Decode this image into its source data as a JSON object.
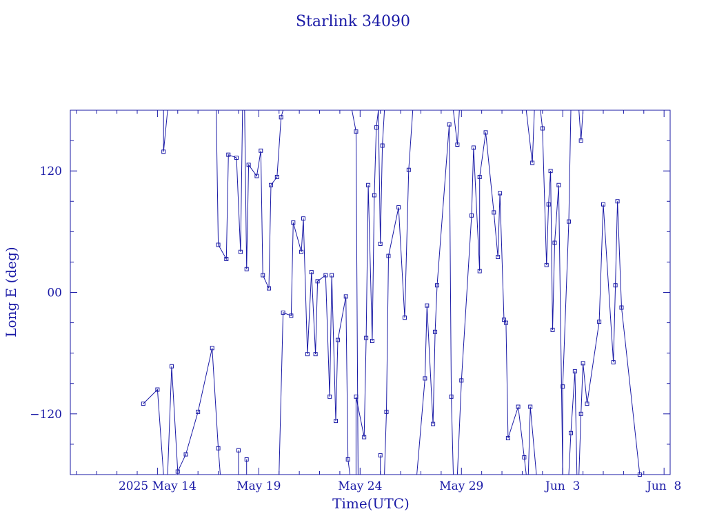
{
  "colors": {
    "ink": "#1a1aa6"
  },
  "chart_data": {
    "type": "line",
    "title": "Starlink 34090",
    "xlabel": "Time(UTC)",
    "ylabel": "Long E (deg)",
    "xlim_days": [
      9.7,
      39.3
    ],
    "ylim": [
      -180,
      180
    ],
    "x_ticks": [
      {
        "day": 14,
        "label": "2025 May 14"
      },
      {
        "day": 19,
        "label": "May 19"
      },
      {
        "day": 24,
        "label": "May 24"
      },
      {
        "day": 29,
        "label": "May 29"
      },
      {
        "day": 34,
        "label": "Jun  3"
      },
      {
        "day": 39,
        "label": "Jun  8"
      }
    ],
    "y_ticks": [
      {
        "value": 120,
        "label": "120"
      },
      {
        "value": 0,
        "label": "00"
      },
      {
        "value": -120,
        "label": "−120"
      }
    ],
    "marker": "square",
    "points": [
      [
        13.3,
        -110
      ],
      [
        14.0,
        -96
      ],
      [
        14.7,
        -73
      ],
      [
        15.0,
        -177
      ],
      [
        15.4,
        -160
      ],
      [
        16.0,
        -118
      ],
      [
        16.7,
        -55
      ],
      [
        17.0,
        -154
      ],
      [
        14.3,
        139
      ],
      [
        17.0,
        47
      ],
      [
        17.4,
        33
      ],
      [
        17.5,
        136
      ],
      [
        17.9,
        133
      ],
      [
        18.1,
        40
      ],
      [
        18.4,
        23
      ],
      [
        18.5,
        126
      ],
      [
        18.9,
        115
      ],
      [
        19.1,
        140
      ],
      [
        19.2,
        17
      ],
      [
        19.5,
        4
      ],
      [
        19.6,
        106
      ],
      [
        19.9,
        114
      ],
      [
        20.1,
        173
      ],
      [
        18.0,
        -156
      ],
      [
        18.4,
        -165
      ],
      [
        20.2,
        -20
      ],
      [
        20.6,
        -23
      ],
      [
        20.7,
        69
      ],
      [
        21.1,
        40
      ],
      [
        21.2,
        73
      ],
      [
        21.4,
        -61
      ],
      [
        21.6,
        20
      ],
      [
        21.8,
        -61
      ],
      [
        21.9,
        11
      ],
      [
        22.3,
        17
      ],
      [
        22.5,
        -103
      ],
      [
        22.6,
        17
      ],
      [
        22.8,
        -127
      ],
      [
        22.9,
        -47
      ],
      [
        23.3,
        -4
      ],
      [
        23.4,
        -165
      ],
      [
        23.8,
        159
      ],
      [
        23.8,
        -103
      ],
      [
        24.2,
        -143
      ],
      [
        24.3,
        -45
      ],
      [
        24.4,
        106
      ],
      [
        24.6,
        -48
      ],
      [
        24.7,
        96
      ],
      [
        24.8,
        163
      ],
      [
        25.0,
        -161
      ],
      [
        25.0,
        48
      ],
      [
        25.1,
        145
      ],
      [
        25.3,
        -118
      ],
      [
        25.4,
        36
      ],
      [
        25.9,
        84
      ],
      [
        26.2,
        -25
      ],
      [
        26.4,
        121
      ],
      [
        27.2,
        -85
      ],
      [
        27.3,
        -13
      ],
      [
        27.6,
        -130
      ],
      [
        27.7,
        -39
      ],
      [
        27.8,
        7
      ],
      [
        28.4,
        166
      ],
      [
        28.5,
        -103
      ],
      [
        28.8,
        146
      ],
      [
        29.0,
        -87
      ],
      [
        29.5,
        76
      ],
      [
        29.6,
        143
      ],
      [
        29.9,
        21
      ],
      [
        29.9,
        114
      ],
      [
        30.2,
        158
      ],
      [
        30.6,
        79
      ],
      [
        30.8,
        35
      ],
      [
        30.9,
        98
      ],
      [
        31.1,
        -27
      ],
      [
        31.2,
        -30
      ],
      [
        31.3,
        -144
      ],
      [
        31.8,
        -113
      ],
      [
        32.1,
        -163
      ],
      [
        32.4,
        -113
      ],
      [
        32.5,
        128
      ],
      [
        33.0,
        162
      ],
      [
        33.2,
        27
      ],
      [
        33.3,
        87
      ],
      [
        33.4,
        120
      ],
      [
        33.5,
        -37
      ],
      [
        33.6,
        49
      ],
      [
        33.8,
        106
      ],
      [
        34.0,
        -93
      ],
      [
        34.3,
        70
      ],
      [
        34.4,
        -139
      ],
      [
        34.6,
        -78
      ],
      [
        34.9,
        150
      ],
      [
        34.9,
        -120
      ],
      [
        35.0,
        -70
      ],
      [
        35.2,
        -110
      ],
      [
        35.8,
        -29
      ],
      [
        36.0,
        87
      ],
      [
        36.5,
        -69
      ],
      [
        36.6,
        7
      ],
      [
        36.7,
        90
      ],
      [
        36.9,
        -15
      ],
      [
        37.8,
        -180
      ]
    ],
    "segments": [
      [
        [
          13.3,
          -110
        ],
        [
          14.0,
          -96
        ],
        [
          14.3,
          -180
        ]
      ],
      [
        [
          14.3,
          180
        ],
        [
          14.3,
          139
        ],
        [
          14.5,
          180
        ]
      ],
      [
        [
          14.5,
          -180
        ],
        [
          14.7,
          -73
        ],
        [
          15.0,
          -177
        ]
      ],
      [
        [
          15.0,
          -177
        ],
        [
          15.4,
          -160
        ],
        [
          16.0,
          -118
        ],
        [
          16.7,
          -55
        ],
        [
          17.0,
          -154
        ],
        [
          17.1,
          -180
        ]
      ],
      [
        [
          16.9,
          180
        ],
        [
          17.0,
          47
        ],
        [
          17.4,
          33
        ],
        [
          17.5,
          136
        ],
        [
          17.9,
          133
        ],
        [
          18.1,
          40
        ],
        [
          18.2,
          180
        ]
      ],
      [
        [
          18.0,
          -180
        ],
        [
          18.0,
          -156
        ],
        [
          18.0,
          -180
        ]
      ],
      [
        [
          18.3,
          180
        ],
        [
          18.4,
          23
        ],
        [
          18.5,
          126
        ],
        [
          18.9,
          115
        ],
        [
          19.1,
          140
        ],
        [
          19.2,
          17
        ],
        [
          19.5,
          4
        ],
        [
          19.6,
          106
        ],
        [
          19.9,
          114
        ],
        [
          20.1,
          173
        ],
        [
          20.2,
          180
        ]
      ],
      [
        [
          18.4,
          -180
        ],
        [
          18.4,
          -165
        ],
        [
          18.4,
          -180
        ]
      ],
      [
        [
          20.0,
          -180
        ],
        [
          20.2,
          -20
        ],
        [
          20.6,
          -23
        ],
        [
          20.7,
          69
        ],
        [
          21.1,
          40
        ],
        [
          21.2,
          73
        ],
        [
          21.4,
          -61
        ],
        [
          21.6,
          20
        ],
        [
          21.8,
          -61
        ],
        [
          21.9,
          11
        ],
        [
          22.3,
          17
        ],
        [
          22.5,
          -103
        ],
        [
          22.6,
          17
        ],
        [
          22.8,
          -127
        ],
        [
          22.9,
          -47
        ],
        [
          23.3,
          -4
        ],
        [
          23.4,
          -165
        ],
        [
          23.5,
          -180
        ]
      ],
      [
        [
          23.6,
          180
        ],
        [
          23.8,
          159
        ],
        [
          23.9,
          -180
        ]
      ],
      [
        [
          23.8,
          -180
        ],
        [
          23.8,
          -103
        ],
        [
          24.2,
          -143
        ],
        [
          24.3,
          -45
        ],
        [
          24.4,
          106
        ],
        [
          24.6,
          -48
        ],
        [
          24.7,
          96
        ],
        [
          24.8,
          163
        ],
        [
          24.9,
          180
        ]
      ],
      [
        [
          25.0,
          -180
        ],
        [
          25.0,
          -161
        ],
        [
          25.0,
          -180
        ]
      ],
      [
        [
          24.9,
          180
        ],
        [
          25.0,
          48
        ],
        [
          25.1,
          145
        ],
        [
          25.2,
          180
        ]
      ],
      [
        [
          25.2,
          -180
        ],
        [
          25.3,
          -118
        ],
        [
          25.4,
          36
        ],
        [
          25.9,
          84
        ],
        [
          26.2,
          -25
        ],
        [
          26.4,
          121
        ],
        [
          26.6,
          180
        ]
      ],
      [
        [
          26.8,
          -180
        ],
        [
          27.2,
          -85
        ],
        [
          27.3,
          -13
        ],
        [
          27.6,
          -130
        ],
        [
          27.7,
          -39
        ],
        [
          27.8,
          7
        ],
        [
          28.4,
          166
        ],
        [
          28.5,
          -103
        ],
        [
          28.6,
          -180
        ]
      ],
      [
        [
          28.6,
          180
        ],
        [
          28.8,
          146
        ],
        [
          28.9,
          180
        ]
      ],
      [
        [
          28.8,
          -180
        ],
        [
          29.0,
          -87
        ],
        [
          29.5,
          76
        ],
        [
          29.6,
          143
        ],
        [
          29.9,
          21
        ],
        [
          29.9,
          114
        ],
        [
          30.2,
          158
        ],
        [
          30.6,
          79
        ],
        [
          30.8,
          35
        ],
        [
          30.9,
          98
        ],
        [
          31.1,
          -27
        ],
        [
          31.2,
          -30
        ],
        [
          31.3,
          -144
        ],
        [
          31.8,
          -113
        ],
        [
          32.1,
          -163
        ],
        [
          32.2,
          -180
        ]
      ],
      [
        [
          32.2,
          180
        ],
        [
          32.5,
          128
        ],
        [
          32.6,
          180
        ]
      ],
      [
        [
          32.3,
          -180
        ],
        [
          32.4,
          -113
        ],
        [
          32.7,
          -180
        ]
      ],
      [
        [
          32.9,
          180
        ],
        [
          33.0,
          162
        ],
        [
          33.2,
          27
        ],
        [
          33.3,
          87
        ],
        [
          33.4,
          120
        ],
        [
          33.5,
          -37
        ],
        [
          33.6,
          49
        ],
        [
          33.8,
          106
        ],
        [
          34.0,
          -180
        ]
      ],
      [
        [
          34.0,
          -180
        ],
        [
          34.0,
          -93
        ],
        [
          34.3,
          70
        ],
        [
          34.4,
          180
        ]
      ],
      [
        [
          34.3,
          -180
        ],
        [
          34.4,
          -139
        ],
        [
          34.6,
          -78
        ],
        [
          34.7,
          -180
        ]
      ],
      [
        [
          34.8,
          180
        ],
        [
          34.9,
          150
        ],
        [
          35.0,
          180
        ]
      ],
      [
        [
          34.8,
          -180
        ],
        [
          34.9,
          -120
        ],
        [
          35.0,
          -70
        ],
        [
          35.2,
          -110
        ],
        [
          35.8,
          -29
        ],
        [
          36.0,
          87
        ],
        [
          36.5,
          -69
        ],
        [
          36.6,
          7
        ],
        [
          36.7,
          90
        ],
        [
          36.9,
          -15
        ],
        [
          37.8,
          -180
        ]
      ]
    ]
  }
}
